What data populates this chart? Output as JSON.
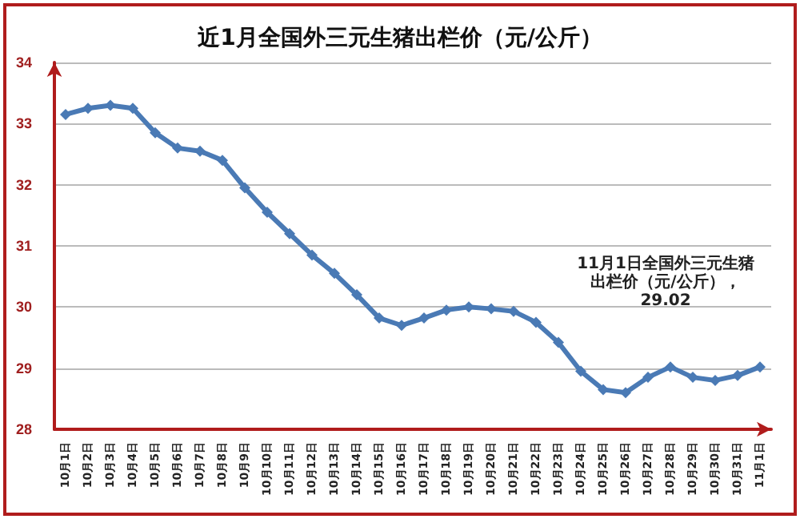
{
  "chart_data": {
    "type": "line",
    "title": "近1月全国外三元生猪出栏价（元/公斤）",
    "categories": [
      "10月1日",
      "10月2日",
      "10月3日",
      "10月4日",
      "10月5日",
      "10月6日",
      "10月7日",
      "10月8日",
      "10月9日",
      "10月10日",
      "10月11日",
      "10月12日",
      "10月13日",
      "10月14日",
      "10月15日",
      "10月16日",
      "10月17日",
      "10月18日",
      "10月19日",
      "10月20日",
      "10月21日",
      "10月22日",
      "10月23日",
      "10月24日",
      "10月25日",
      "10月26日",
      "10月27日",
      "10月28日",
      "10月29日",
      "10月30日",
      "10月31日",
      "11月1日"
    ],
    "series": [
      {
        "color": "#4a7ab5",
        "values": [
          33.15,
          33.25,
          33.3,
          33.25,
          32.85,
          32.6,
          32.55,
          32.4,
          31.95,
          31.55,
          31.2,
          30.85,
          30.55,
          30.2,
          29.82,
          29.7,
          29.82,
          29.95,
          30.0,
          29.97,
          29.93,
          29.75,
          29.42,
          28.95,
          28.65,
          28.6,
          28.85,
          29.02,
          28.85,
          28.8,
          28.88,
          29.02
        ]
      }
    ],
    "ylim": [
      28,
      34
    ],
    "yticks": [
      28,
      29,
      30,
      31,
      32,
      33,
      34
    ],
    "grid": "y",
    "marker": "diamond",
    "line_style": "solid",
    "annotations": [
      "11月1日全国外三元生猪",
      "出栏价（元/公斤），",
      "29.02"
    ]
  }
}
